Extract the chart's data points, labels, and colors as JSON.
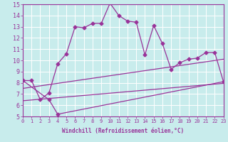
{
  "xlabel": "Windchill (Refroidissement éolien,°C)",
  "xlim": [
    0,
    23
  ],
  "ylim": [
    5,
    15
  ],
  "xticks": [
    0,
    1,
    2,
    3,
    4,
    5,
    6,
    7,
    8,
    9,
    10,
    11,
    12,
    13,
    14,
    15,
    16,
    17,
    18,
    19,
    20,
    21,
    22,
    23
  ],
  "yticks": [
    5,
    6,
    7,
    8,
    9,
    10,
    11,
    12,
    13,
    14,
    15
  ],
  "bg_color": "#c8ecec",
  "line_color": "#993399",
  "grid_color": "#ffffff",
  "series1_x": [
    0,
    1,
    2,
    3,
    4,
    5,
    6,
    7,
    8,
    9,
    10,
    11,
    12,
    13,
    14,
    15,
    16,
    17,
    18,
    19,
    20,
    21,
    22,
    23
  ],
  "series1_y": [
    8.2,
    8.2,
    6.5,
    7.1,
    9.7,
    10.6,
    13.0,
    12.9,
    13.3,
    13.3,
    15.1,
    14.0,
    13.5,
    13.4,
    10.5,
    13.1,
    11.5,
    9.2,
    9.8,
    10.1,
    10.2,
    10.7,
    10.7,
    8.1
  ],
  "series2_x": [
    0,
    3,
    4,
    23
  ],
  "series2_y": [
    8.2,
    6.5,
    5.2,
    8.1
  ],
  "series3_x": [
    0,
    23
  ],
  "series3_y": [
    6.4,
    7.95
  ],
  "series4_x": [
    0,
    23
  ],
  "series4_y": [
    7.5,
    10.1
  ],
  "marker": "D",
  "markersize": 2.5,
  "linewidth": 0.9,
  "tick_fontsize_x": 5,
  "tick_fontsize_y": 6,
  "xlabel_fontsize": 5.5
}
